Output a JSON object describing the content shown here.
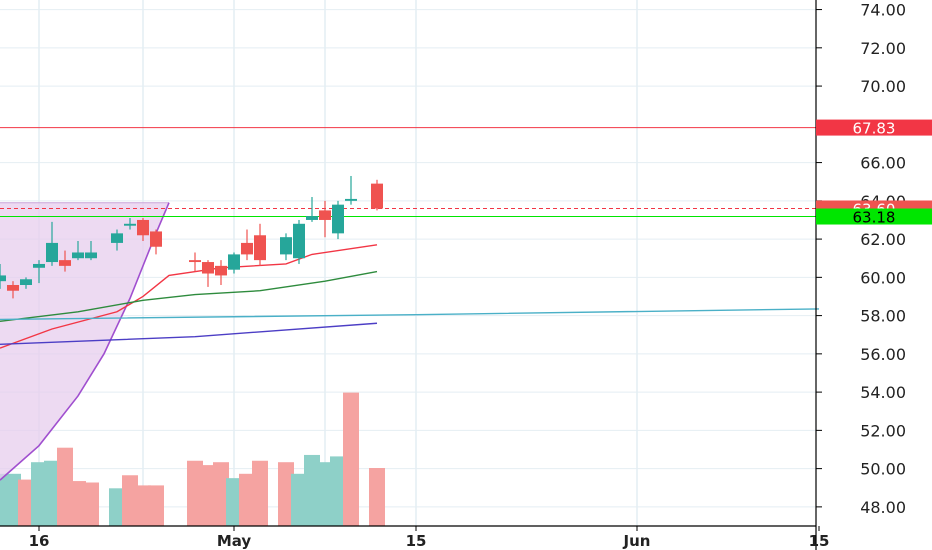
{
  "chart_data": {
    "type": "candlestick",
    "title": "",
    "xlabel": "",
    "ylabel": "",
    "ylim": [
      47,
      74.5
    ],
    "y_ticks": [
      48,
      50,
      52,
      54,
      56,
      58,
      60,
      62,
      64,
      66,
      70,
      72,
      74
    ],
    "y_tick_labels": [
      "48.00",
      "50.00",
      "52.00",
      "54.00",
      "56.00",
      "58.00",
      "60.00",
      "62.00",
      "64.00",
      "66.00",
      "70.00",
      "72.00",
      "74.00"
    ],
    "x_range": [
      "2019-04-13",
      "2019-06-15"
    ],
    "x_ticks": [
      {
        "date": "2019-04-16",
        "label": "16"
      },
      {
        "date": "2019-05-01",
        "label": "May"
      },
      {
        "date": "2019-05-15",
        "label": "15"
      },
      {
        "date": "2019-06-01",
        "label": "Jun"
      },
      {
        "date": "2019-06-15",
        "label": "15"
      }
    ],
    "extra_gridlines": [
      "2019-04-13",
      "2019-04-24",
      "2019-05-08"
    ],
    "grid": true,
    "candles": [
      {
        "date": "2019-04-13",
        "open": 59.8,
        "high": 60.7,
        "low": 59.4,
        "close": 60.1
      },
      {
        "date": "2019-04-14",
        "open": 59.6,
        "high": 59.8,
        "low": 58.9,
        "close": 59.3
      },
      {
        "date": "2019-04-15",
        "open": 59.6,
        "high": 60.0,
        "low": 59.4,
        "close": 59.9
      },
      {
        "date": "2019-04-16",
        "open": 60.5,
        "high": 60.9,
        "low": 59.7,
        "close": 60.7
      },
      {
        "date": "2019-04-17",
        "open": 60.8,
        "high": 62.9,
        "low": 60.6,
        "close": 61.8
      },
      {
        "date": "2019-04-18",
        "open": 60.9,
        "high": 61.4,
        "low": 60.3,
        "close": 60.6
      },
      {
        "date": "2019-04-19",
        "open": 61.0,
        "high": 61.9,
        "low": 60.9,
        "close": 61.3
      },
      {
        "date": "2019-04-20",
        "open": 61.0,
        "high": 61.9,
        "low": 60.9,
        "close": 61.3
      },
      {
        "date": "2019-04-22",
        "open": 61.8,
        "high": 62.5,
        "low": 61.4,
        "close": 62.3
      },
      {
        "date": "2019-04-23",
        "open": 62.7,
        "high": 63.1,
        "low": 62.5,
        "close": 62.8
      },
      {
        "date": "2019-04-24",
        "open": 63.0,
        "high": 63.1,
        "low": 61.9,
        "close": 62.2
      },
      {
        "date": "2019-04-25",
        "open": 62.4,
        "high": 62.5,
        "low": 61.2,
        "close": 61.6
      },
      {
        "date": "2019-04-28",
        "open": 60.9,
        "high": 61.3,
        "low": 60.3,
        "close": 60.8
      },
      {
        "date": "2019-04-29",
        "open": 60.8,
        "high": 60.9,
        "low": 59.5,
        "close": 60.2
      },
      {
        "date": "2019-04-30",
        "open": 60.6,
        "high": 60.9,
        "low": 59.6,
        "close": 60.1
      },
      {
        "date": "2019-05-01",
        "open": 60.4,
        "high": 61.3,
        "low": 60.2,
        "close": 61.2
      },
      {
        "date": "2019-05-02",
        "open": 61.8,
        "high": 62.5,
        "low": 60.9,
        "close": 61.2
      },
      {
        "date": "2019-05-03",
        "open": 62.2,
        "high": 62.8,
        "low": 60.6,
        "close": 60.9
      },
      {
        "date": "2019-05-05",
        "open": 61.2,
        "high": 62.3,
        "low": 60.9,
        "close": 62.1
      },
      {
        "date": "2019-05-06",
        "open": 61.0,
        "high": 63.0,
        "low": 60.7,
        "close": 62.8
      },
      {
        "date": "2019-05-07",
        "open": 63.0,
        "high": 64.2,
        "low": 62.9,
        "close": 63.2
      },
      {
        "date": "2019-05-08",
        "open": 63.5,
        "high": 64.0,
        "low": 62.1,
        "close": 63.0
      },
      {
        "date": "2019-05-09",
        "open": 62.3,
        "high": 64.0,
        "low": 62.0,
        "close": 63.8
      },
      {
        "date": "2019-05-10",
        "open": 64.0,
        "high": 65.3,
        "low": 63.8,
        "close": 64.1
      },
      {
        "date": "2019-05-12",
        "open": 64.9,
        "high": 65.1,
        "low": 63.5,
        "close": 63.6
      }
    ],
    "volumes": [
      {
        "date": "2019-04-13",
        "value": 0.36,
        "color": "green"
      },
      {
        "date": "2019-04-14",
        "value": 0.36,
        "color": "green"
      },
      {
        "date": "2019-04-15",
        "value": 0.32,
        "color": "red"
      },
      {
        "date": "2019-04-16",
        "value": 0.44,
        "color": "green"
      },
      {
        "date": "2019-04-17",
        "value": 0.45,
        "color": "green"
      },
      {
        "date": "2019-04-18",
        "value": 0.54,
        "color": "red"
      },
      {
        "date": "2019-04-19",
        "value": 0.31,
        "color": "red"
      },
      {
        "date": "2019-04-20",
        "value": 0.3,
        "color": "red"
      },
      {
        "date": "2019-04-22",
        "value": 0.26,
        "color": "green"
      },
      {
        "date": "2019-04-23",
        "value": 0.35,
        "color": "red"
      },
      {
        "date": "2019-04-24",
        "value": 0.28,
        "color": "red"
      },
      {
        "date": "2019-04-25",
        "value": 0.28,
        "color": "red"
      },
      {
        "date": "2019-04-28",
        "value": 0.45,
        "color": "red"
      },
      {
        "date": "2019-04-29",
        "value": 0.42,
        "color": "red"
      },
      {
        "date": "2019-04-30",
        "value": 0.44,
        "color": "red"
      },
      {
        "date": "2019-05-01",
        "value": 0.33,
        "color": "green"
      },
      {
        "date": "2019-05-02",
        "value": 0.36,
        "color": "red"
      },
      {
        "date": "2019-05-03",
        "value": 0.45,
        "color": "red"
      },
      {
        "date": "2019-05-05",
        "value": 0.44,
        "color": "red"
      },
      {
        "date": "2019-05-06",
        "value": 0.36,
        "color": "green"
      },
      {
        "date": "2019-05-07",
        "value": 0.49,
        "color": "green"
      },
      {
        "date": "2019-05-08",
        "value": 0.44,
        "color": "green"
      },
      {
        "date": "2019-05-09",
        "value": 0.48,
        "color": "green"
      },
      {
        "date": "2019-05-10",
        "value": 0.92,
        "color": "red"
      },
      {
        "date": "2019-05-12",
        "value": 0.4,
        "color": "red"
      }
    ],
    "moving_averages": [
      {
        "color": "#f23645",
        "points": [
          [
            "2019-04-13",
            56.3
          ],
          [
            "2019-04-17",
            57.3
          ],
          [
            "2019-04-22",
            58.2
          ],
          [
            "2019-04-24",
            59.0
          ],
          [
            "2019-04-26",
            60.1
          ],
          [
            "2019-04-30",
            60.5
          ],
          [
            "2019-05-05",
            60.7
          ],
          [
            "2019-05-07",
            61.2
          ],
          [
            "2019-05-12",
            61.7
          ]
        ]
      },
      {
        "color": "#2e8b3d",
        "points": [
          [
            "2019-04-13",
            57.7
          ],
          [
            "2019-04-19",
            58.2
          ],
          [
            "2019-04-24",
            58.8
          ],
          [
            "2019-04-28",
            59.1
          ],
          [
            "2019-05-03",
            59.3
          ],
          [
            "2019-05-08",
            59.8
          ],
          [
            "2019-05-12",
            60.3
          ]
        ]
      },
      {
        "color": "#4ab0c7",
        "points": [
          [
            "2019-04-13",
            57.8
          ],
          [
            "2019-05-15",
            58.05
          ],
          [
            "2019-06-15",
            58.35
          ]
        ]
      },
      {
        "color": "#4c3ec5",
        "points": [
          [
            "2019-04-13",
            56.5
          ],
          [
            "2019-04-28",
            56.9
          ],
          [
            "2019-05-12",
            57.6
          ]
        ]
      }
    ],
    "parabola": {
      "color": "#a04fcf",
      "fill": "#e7cdee",
      "box_top": 63.9,
      "box_end": "2019-04-25",
      "points": [
        [
          "2019-04-13",
          49.4
        ],
        [
          "2019-04-16",
          51.2
        ],
        [
          "2019-04-19",
          53.8
        ],
        [
          "2019-04-21",
          56.0
        ],
        [
          "2019-04-23",
          58.9
        ],
        [
          "2019-04-24",
          60.6
        ],
        [
          "2019-04-25",
          62.3
        ],
        [
          "2019-04-26",
          63.9
        ]
      ]
    },
    "price_lines": [
      {
        "value": 67.83,
        "label": "67.83",
        "color": "#f23645",
        "style": "solid"
      },
      {
        "value": 63.6,
        "label": "63.60",
        "color": "#f23645",
        "style": "dashed"
      },
      {
        "value": 63.18,
        "label": "63.18",
        "color": "#00e600",
        "style": "solid"
      }
    ],
    "colors": {
      "up": "#26a69a",
      "down": "#ef5350",
      "volume_up": "#8ed0c8",
      "volume_down": "#f5a3a1",
      "grid": "#e4eef3",
      "axis": "#000000"
    }
  }
}
